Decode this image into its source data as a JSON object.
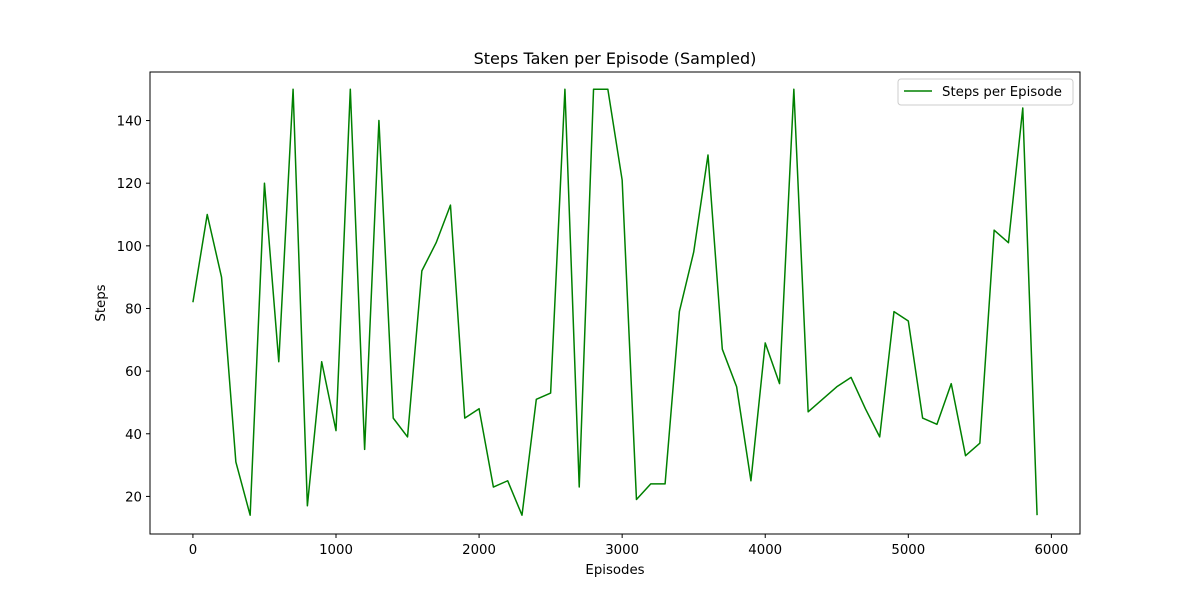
{
  "chart_data": {
    "type": "line",
    "title": "Steps Taken per Episode (Sampled)",
    "xlabel": "Episodes",
    "ylabel": "Steps",
    "xlim": [
      -300,
      6200
    ],
    "ylim": [
      8,
      155.5
    ],
    "xticks": [
      0,
      1000,
      2000,
      3000,
      4000,
      5000,
      6000
    ],
    "yticks": [
      20,
      40,
      60,
      80,
      100,
      120,
      140
    ],
    "grid": false,
    "legend_position": "upper right",
    "series": [
      {
        "name": "Steps per Episode",
        "color": "#008000",
        "x": [
          0,
          100,
          200,
          300,
          400,
          500,
          600,
          700,
          800,
          900,
          1000,
          1100,
          1200,
          1300,
          1400,
          1500,
          1600,
          1700,
          1800,
          1900,
          2000,
          2100,
          2200,
          2300,
          2400,
          2500,
          2600,
          2700,
          2800,
          2900,
          3000,
          3100,
          3200,
          3300,
          3400,
          3500,
          3600,
          3700,
          3800,
          3900,
          4000,
          4100,
          4200,
          4300,
          4400,
          4500,
          4600,
          4700,
          4800,
          4900,
          5000,
          5100,
          5200,
          5300,
          5400,
          5500,
          5600,
          5700,
          5800,
          5900
        ],
        "y": [
          82,
          110,
          90,
          31,
          14,
          120,
          63,
          150,
          17,
          63,
          41,
          150,
          35,
          140,
          45,
          39,
          92,
          101,
          113,
          45,
          48,
          23,
          25,
          14,
          51,
          53,
          150,
          23,
          150,
          150,
          121,
          19,
          24,
          24,
          79,
          98,
          129,
          67,
          55,
          25,
          69,
          56,
          150,
          47,
          51,
          55,
          58,
          48,
          39,
          79,
          76,
          45,
          43,
          56,
          33,
          37,
          105,
          101,
          144,
          14
        ]
      }
    ]
  }
}
